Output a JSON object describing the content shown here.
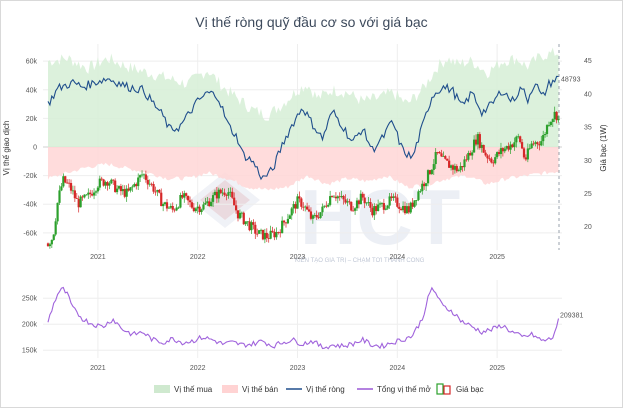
{
  "title": "Vị thế ròng quỹ đầu cơ so với giá bạc",
  "watermark": {
    "logo": "HCT",
    "slogan": "KIẾN TẠO GIÁ TRỊ – CHẠM TỚI THÀNH CÔNG"
  },
  "chart_data": [
    {
      "type": "area+line+candlestick",
      "panel": "top",
      "ylabel": "Vị thế giao dịch",
      "y2label": "Giá bạc (1W)",
      "ylim": [
        -72000,
        72000
      ],
      "y2lim": [
        16.5,
        47.5
      ],
      "yticks": [
        60000,
        40000,
        20000,
        0,
        -20000,
        -40000,
        -60000
      ],
      "ytick_labels": [
        "60k",
        "40k",
        "20k",
        "0",
        "-20k",
        "-40k",
        "-60k"
      ],
      "y2ticks": [
        45,
        40,
        35,
        30,
        25,
        20
      ],
      "y2tick_labels": [
        "45",
        "40",
        "35",
        "30",
        "25",
        "20"
      ],
      "xlim": [
        2020.45,
        2025.65
      ],
      "xticks": [
        2021,
        2022,
        2023,
        2024,
        2025
      ],
      "xtick_labels": [
        "2021",
        "2022",
        "2023",
        "2024",
        "2025"
      ],
      "net_position_anchors": [
        [
          2020.5,
          30000
        ],
        [
          2020.6,
          41000
        ],
        [
          2020.75,
          45000
        ],
        [
          2020.85,
          42000
        ],
        [
          2021.0,
          46000
        ],
        [
          2021.1,
          48000
        ],
        [
          2021.2,
          45000
        ],
        [
          2021.3,
          42000
        ],
        [
          2021.45,
          40000
        ],
        [
          2021.55,
          31000
        ],
        [
          2021.65,
          22000
        ],
        [
          2021.72,
          12000
        ],
        [
          2021.82,
          14000
        ],
        [
          2021.9,
          22000
        ],
        [
          2022.0,
          32000
        ],
        [
          2022.1,
          38000
        ],
        [
          2022.2,
          36000
        ],
        [
          2022.3,
          16000
        ],
        [
          2022.4,
          6000
        ],
        [
          2022.45,
          -5000
        ],
        [
          2022.55,
          -10000
        ],
        [
          2022.65,
          -22000
        ],
        [
          2022.75,
          -16000
        ],
        [
          2022.85,
          2000
        ],
        [
          2022.95,
          16000
        ],
        [
          2023.05,
          28000
        ],
        [
          2023.15,
          16000
        ],
        [
          2023.25,
          6000
        ],
        [
          2023.35,
          25000
        ],
        [
          2023.45,
          15000
        ],
        [
          2023.55,
          3000
        ],
        [
          2023.65,
          13000
        ],
        [
          2023.75,
          -2000
        ],
        [
          2023.85,
          6000
        ],
        [
          2023.95,
          18000
        ],
        [
          2024.05,
          -2000
        ],
        [
          2024.15,
          -8000
        ],
        [
          2024.25,
          14000
        ],
        [
          2024.35,
          36000
        ],
        [
          2024.45,
          42000
        ],
        [
          2024.55,
          40000
        ],
        [
          2024.65,
          28000
        ],
        [
          2024.75,
          38000
        ],
        [
          2024.85,
          24000
        ],
        [
          2024.95,
          30000
        ],
        [
          2025.05,
          40000
        ],
        [
          2025.15,
          32000
        ],
        [
          2025.25,
          42000
        ],
        [
          2025.3,
          32000
        ],
        [
          2025.38,
          46000
        ],
        [
          2025.45,
          34000
        ],
        [
          2025.52,
          44000
        ],
        [
          2025.6,
          48000
        ]
      ],
      "buy_position_anchors": [
        [
          2020.5,
          60000
        ],
        [
          2020.7,
          62000
        ],
        [
          2020.9,
          55000
        ],
        [
          2021.1,
          62000
        ],
        [
          2021.3,
          56000
        ],
        [
          2021.5,
          52000
        ],
        [
          2021.7,
          48000
        ],
        [
          2021.9,
          44000
        ],
        [
          2022.1,
          54000
        ],
        [
          2022.25,
          42000
        ],
        [
          2022.4,
          34000
        ],
        [
          2022.55,
          26000
        ],
        [
          2022.7,
          22000
        ],
        [
          2022.85,
          30000
        ],
        [
          2023.0,
          40000
        ],
        [
          2023.1,
          44000
        ],
        [
          2023.2,
          34000
        ],
        [
          2023.35,
          40000
        ],
        [
          2023.5,
          38000
        ],
        [
          2023.65,
          32000
        ],
        [
          2023.8,
          34000
        ],
        [
          2023.95,
          38000
        ],
        [
          2024.1,
          30000
        ],
        [
          2024.25,
          40000
        ],
        [
          2024.4,
          56000
        ],
        [
          2024.5,
          62000
        ],
        [
          2024.6,
          58000
        ],
        [
          2024.75,
          60000
        ],
        [
          2024.9,
          52000
        ],
        [
          2025.05,
          60000
        ],
        [
          2025.2,
          62000
        ],
        [
          2025.3,
          56000
        ],
        [
          2025.45,
          64000
        ],
        [
          2025.6,
          66000
        ]
      ],
      "sell_position_anchors": [
        [
          2020.5,
          -22000
        ],
        [
          2020.7,
          -18000
        ],
        [
          2020.9,
          -14000
        ],
        [
          2021.1,
          -12000
        ],
        [
          2021.3,
          -15000
        ],
        [
          2021.5,
          -18000
        ],
        [
          2021.7,
          -22000
        ],
        [
          2021.9,
          -22000
        ],
        [
          2022.1,
          -18000
        ],
        [
          2022.3,
          -22000
        ],
        [
          2022.5,
          -28000
        ],
        [
          2022.7,
          -30000
        ],
        [
          2022.9,
          -28000
        ],
        [
          2023.1,
          -20000
        ],
        [
          2023.3,
          -26000
        ],
        [
          2023.5,
          -22000
        ],
        [
          2023.7,
          -24000
        ],
        [
          2023.9,
          -20000
        ],
        [
          2024.1,
          -28000
        ],
        [
          2024.3,
          -26000
        ],
        [
          2024.5,
          -22000
        ],
        [
          2024.7,
          -20000
        ],
        [
          2024.9,
          -26000
        ],
        [
          2025.1,
          -22000
        ],
        [
          2025.3,
          -20000
        ],
        [
          2025.5,
          -18000
        ],
        [
          2025.6,
          -17000
        ]
      ],
      "silver_price_anchors": [
        [
          2020.5,
          17.5
        ],
        [
          2020.55,
          18.5
        ],
        [
          2020.6,
          24
        ],
        [
          2020.65,
          27
        ],
        [
          2020.72,
          26
        ],
        [
          2020.8,
          23.5
        ],
        [
          2020.9,
          24.5
        ],
        [
          2021.0,
          26.5
        ],
        [
          2021.1,
          27
        ],
        [
          2021.2,
          25.5
        ],
        [
          2021.3,
          25
        ],
        [
          2021.45,
          28
        ],
        [
          2021.55,
          26
        ],
        [
          2021.65,
          23.5
        ],
        [
          2021.75,
          22.5
        ],
        [
          2021.85,
          24.5
        ],
        [
          2021.95,
          23
        ],
        [
          2022.05,
          23
        ],
        [
          2022.2,
          25
        ],
        [
          2022.3,
          25.5
        ],
        [
          2022.4,
          22
        ],
        [
          2022.5,
          20.5
        ],
        [
          2022.6,
          19
        ],
        [
          2022.7,
          18.5
        ],
        [
          2022.8,
          19.2
        ],
        [
          2022.9,
          21.5
        ],
        [
          2023.0,
          23.8
        ],
        [
          2023.05,
          23.5
        ],
        [
          2023.15,
          21
        ],
        [
          2023.25,
          22.5
        ],
        [
          2023.35,
          25.2
        ],
        [
          2023.45,
          24
        ],
        [
          2023.55,
          23
        ],
        [
          2023.65,
          24.5
        ],
        [
          2023.75,
          22.5
        ],
        [
          2023.85,
          23.2
        ],
        [
          2023.95,
          24
        ],
        [
          2024.05,
          23
        ],
        [
          2024.12,
          22.5
        ],
        [
          2024.2,
          25
        ],
        [
          2024.3,
          27.5
        ],
        [
          2024.4,
          31
        ],
        [
          2024.45,
          30
        ],
        [
          2024.55,
          29
        ],
        [
          2024.62,
          28.5
        ],
        [
          2024.72,
          31
        ],
        [
          2024.8,
          33.5
        ],
        [
          2024.88,
          31
        ],
        [
          2024.95,
          30
        ],
        [
          2025.05,
          31.5
        ],
        [
          2025.15,
          32.5
        ],
        [
          2025.22,
          33.5
        ],
        [
          2025.28,
          30
        ],
        [
          2025.35,
          32.5
        ],
        [
          2025.45,
          33
        ],
        [
          2025.52,
          36
        ],
        [
          2025.58,
          37
        ],
        [
          2025.62,
          36.5
        ]
      ],
      "net_position_last_label": "48793",
      "forecast_marker_x": 2025.62
    },
    {
      "type": "line",
      "panel": "bottom",
      "ylim": [
        135000,
        285000
      ],
      "yticks": [
        250000,
        200000,
        150000
      ],
      "ytick_labels": [
        "250k",
        "200k",
        "150k"
      ],
      "xticks": [
        2021,
        2022,
        2023,
        2024,
        2025
      ],
      "xtick_labels": [
        "2021",
        "2022",
        "2023",
        "2024",
        "2025"
      ],
      "open_interest_anchors": [
        [
          2020.5,
          205000
        ],
        [
          2020.55,
          235000
        ],
        [
          2020.6,
          260000
        ],
        [
          2020.65,
          268000
        ],
        [
          2020.7,
          255000
        ],
        [
          2020.75,
          230000
        ],
        [
          2020.85,
          210000
        ],
        [
          2020.95,
          200000
        ],
        [
          2021.05,
          195000
        ],
        [
          2021.15,
          210000
        ],
        [
          2021.25,
          190000
        ],
        [
          2021.35,
          180000
        ],
        [
          2021.45,
          185000
        ],
        [
          2021.55,
          170000
        ],
        [
          2021.65,
          165000
        ],
        [
          2021.75,
          172000
        ],
        [
          2021.85,
          165000
        ],
        [
          2021.95,
          168000
        ],
        [
          2022.05,
          175000
        ],
        [
          2022.15,
          170000
        ],
        [
          2022.25,
          162000
        ],
        [
          2022.35,
          165000
        ],
        [
          2022.45,
          160000
        ],
        [
          2022.55,
          162000
        ],
        [
          2022.65,
          168000
        ],
        [
          2022.75,
          158000
        ],
        [
          2022.85,
          165000
        ],
        [
          2022.95,
          170000
        ],
        [
          2023.05,
          162000
        ],
        [
          2023.15,
          168000
        ],
        [
          2023.25,
          155000
        ],
        [
          2023.35,
          160000
        ],
        [
          2023.45,
          158000
        ],
        [
          2023.55,
          162000
        ],
        [
          2023.65,
          170000
        ],
        [
          2023.75,
          160000
        ],
        [
          2023.85,
          158000
        ],
        [
          2023.95,
          165000
        ],
        [
          2024.05,
          170000
        ],
        [
          2024.15,
          178000
        ],
        [
          2024.25,
          210000
        ],
        [
          2024.3,
          245000
        ],
        [
          2024.35,
          270000
        ],
        [
          2024.4,
          255000
        ],
        [
          2024.45,
          235000
        ],
        [
          2024.55,
          225000
        ],
        [
          2024.65,
          205000
        ],
        [
          2024.75,
          195000
        ],
        [
          2024.85,
          185000
        ],
        [
          2024.95,
          190000
        ],
        [
          2025.05,
          198000
        ],
        [
          2025.15,
          185000
        ],
        [
          2025.25,
          175000
        ],
        [
          2025.35,
          180000
        ],
        [
          2025.45,
          168000
        ],
        [
          2025.55,
          172000
        ],
        [
          2025.62,
          209000
        ]
      ],
      "open_interest_last_label": "209381"
    }
  ],
  "legend": [
    {
      "label": "Vị thế mua",
      "color": "#cfe9cf",
      "kind": "area"
    },
    {
      "label": "Vị thế bán",
      "color": "#ffd3d3",
      "kind": "area"
    },
    {
      "label": "Vị thế ròng",
      "color": "#1f4e8c",
      "kind": "line"
    },
    {
      "label": "Tổng vị thế mở",
      "color": "#9b59d6",
      "kind": "line"
    },
    {
      "label": "Giá bạc",
      "color": "#2ca02c",
      "kind": "candle"
    }
  ],
  "colors": {
    "buy_area": "#d6eed6",
    "sell_area": "#ffd6d6",
    "net_line": "#1f4e8c",
    "oi_line": "#a063dc",
    "candle_up": "#2ca02c",
    "candle_down": "#d62728",
    "grid": "#eeeeee",
    "marker": "#9aa3ad"
  }
}
